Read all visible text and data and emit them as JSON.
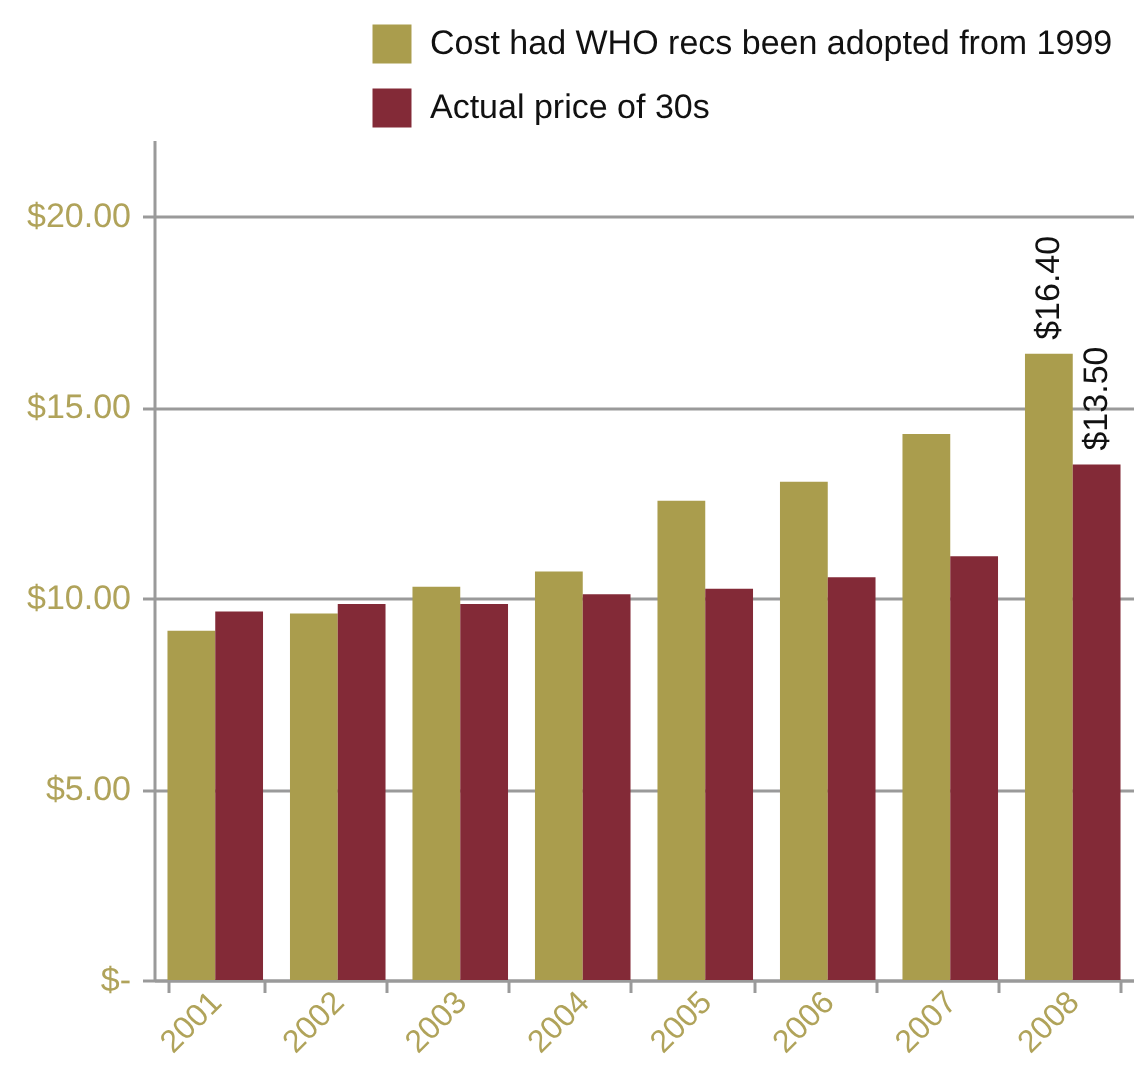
{
  "chart_data": {
    "type": "bar",
    "categories": [
      "2001",
      "2002",
      "2003",
      "2004",
      "2005",
      "2006",
      "2007",
      "2008"
    ],
    "series": [
      {
        "name": "Cost had WHO recs been adopted from 1999",
        "color": "#aa9d4d",
        "values": [
          9.15,
          9.6,
          10.3,
          10.7,
          12.55,
          13.05,
          14.3,
          16.4
        ],
        "value_labels": [
          null,
          null,
          null,
          null,
          null,
          null,
          null,
          "$16.40"
        ]
      },
      {
        "name": "Actual price of 30s",
        "color": "#832a37",
        "values": [
          9.65,
          9.85,
          9.85,
          10.1,
          10.25,
          10.55,
          11.1,
          13.5
        ],
        "value_labels": [
          null,
          null,
          null,
          null,
          null,
          null,
          null,
          "$13.50"
        ]
      }
    ],
    "ylim": [
      0,
      22
    ],
    "yticks": [
      {
        "value": 0,
        "label": "$-"
      },
      {
        "value": 5,
        "label": "$5.00"
      },
      {
        "value": 10,
        "label": "$10.00"
      },
      {
        "value": 15,
        "label": "$15.00"
      },
      {
        "value": 20,
        "label": "$20.00"
      }
    ],
    "grid": "y",
    "legend": "top right"
  }
}
